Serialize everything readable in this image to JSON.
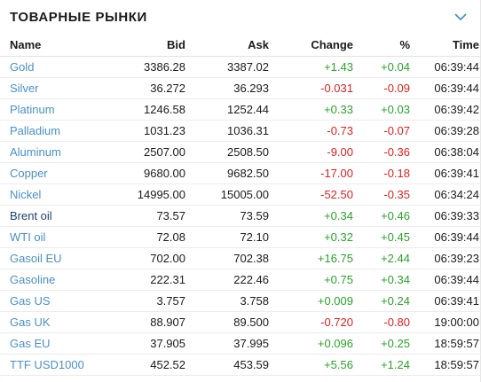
{
  "widget": {
    "title": "ТОВАРНЫЕ РЫНКИ",
    "toggle_icon": "chevron-down-icon",
    "accent_color": "#4a90c8",
    "positive_color": "#29a329",
    "negative_color": "#e02020"
  },
  "table": {
    "columns": {
      "name": "Name",
      "bid": "Bid",
      "ask": "Ask",
      "change": "Change",
      "pct": "%",
      "time": "Time"
    },
    "rows": [
      {
        "name": "Gold",
        "bid": "3386.28",
        "ask": "3387.02",
        "change": "+1.43",
        "pct": "+0.04",
        "time": "06:39:44",
        "dir": "pos",
        "active": false
      },
      {
        "name": "Silver",
        "bid": "36.272",
        "ask": "36.293",
        "change": "-0.031",
        "pct": "-0.09",
        "time": "06:39:44",
        "dir": "neg",
        "active": false
      },
      {
        "name": "Platinum",
        "bid": "1246.58",
        "ask": "1252.44",
        "change": "+0.33",
        "pct": "+0.03",
        "time": "06:39:42",
        "dir": "pos",
        "active": false
      },
      {
        "name": "Palladium",
        "bid": "1031.23",
        "ask": "1036.31",
        "change": "-0.73",
        "pct": "-0.07",
        "time": "06:39:28",
        "dir": "neg",
        "active": false
      },
      {
        "name": "Aluminum",
        "bid": "2507.00",
        "ask": "2508.50",
        "change": "-9.00",
        "pct": "-0.36",
        "time": "06:38:04",
        "dir": "neg",
        "active": false
      },
      {
        "name": "Copper",
        "bid": "9680.00",
        "ask": "9682.50",
        "change": "-17.00",
        "pct": "-0.18",
        "time": "06:39:41",
        "dir": "neg",
        "active": false
      },
      {
        "name": "Nickel",
        "bid": "14995.00",
        "ask": "15005.00",
        "change": "-52.50",
        "pct": "-0.35",
        "time": "06:34:24",
        "dir": "neg",
        "active": false
      },
      {
        "name": "Brent oil",
        "bid": "73.57",
        "ask": "73.59",
        "change": "+0.34",
        "pct": "+0.46",
        "time": "06:39:33",
        "dir": "pos",
        "active": true
      },
      {
        "name": "WTI oil",
        "bid": "72.08",
        "ask": "72.10",
        "change": "+0.32",
        "pct": "+0.45",
        "time": "06:39:44",
        "dir": "pos",
        "active": false
      },
      {
        "name": "Gasoil EU",
        "bid": "702.00",
        "ask": "702.38",
        "change": "+16.75",
        "pct": "+2.44",
        "time": "06:39:23",
        "dir": "pos",
        "active": false
      },
      {
        "name": "Gasoline",
        "bid": "222.31",
        "ask": "222.46",
        "change": "+0.75",
        "pct": "+0.34",
        "time": "06:39:44",
        "dir": "pos",
        "active": false
      },
      {
        "name": "Gas US",
        "bid": "3.757",
        "ask": "3.758",
        "change": "+0.009",
        "pct": "+0.24",
        "time": "06:39:41",
        "dir": "pos",
        "active": false
      },
      {
        "name": "Gas UK",
        "bid": "88.907",
        "ask": "89.500",
        "change": "-0.720",
        "pct": "-0.80",
        "time": "19:00:00",
        "dir": "neg",
        "active": false
      },
      {
        "name": "Gas EU",
        "bid": "37.905",
        "ask": "37.995",
        "change": "+0.096",
        "pct": "+0.25",
        "time": "18:59:57",
        "dir": "pos",
        "active": false
      },
      {
        "name": "TTF USD1000",
        "bid": "452.52",
        "ask": "453.59",
        "change": "+5.56",
        "pct": "+1.24",
        "time": "18:59:57",
        "dir": "pos",
        "active": false
      }
    ]
  }
}
